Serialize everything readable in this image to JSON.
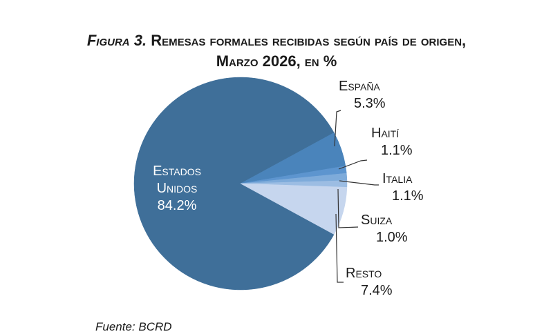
{
  "title": {
    "figure": "Figura 3.",
    "line1": "Remesas formales recibidas según país de origen,",
    "line2": "Marzo 2026, en %"
  },
  "source": "Fuente: BCRD",
  "chart_data": {
    "type": "pie",
    "title": "Figura 3. Remesas formales recibidas según país de origen, Marzo 2026, en %",
    "slices": [
      {
        "label": "Estados Unidos",
        "value": 84.2,
        "text": "84.2%",
        "color": "#3f6f99"
      },
      {
        "label": "España",
        "value": 5.3,
        "text": "5.3%",
        "color": "#4a84bb"
      },
      {
        "label": "Haití",
        "value": 1.1,
        "text": "1.1%",
        "color": "#5d95cf"
      },
      {
        "label": "Italia",
        "value": 1.1,
        "text": "1.1%",
        "color": "#7eabda"
      },
      {
        "label": "Suiza",
        "value": 1.0,
        "text": "1.0%",
        "color": "#9cbde3"
      },
      {
        "label": "Resto",
        "value": 7.4,
        "text": "7.4%",
        "color": "#c6d6ee"
      }
    ]
  }
}
